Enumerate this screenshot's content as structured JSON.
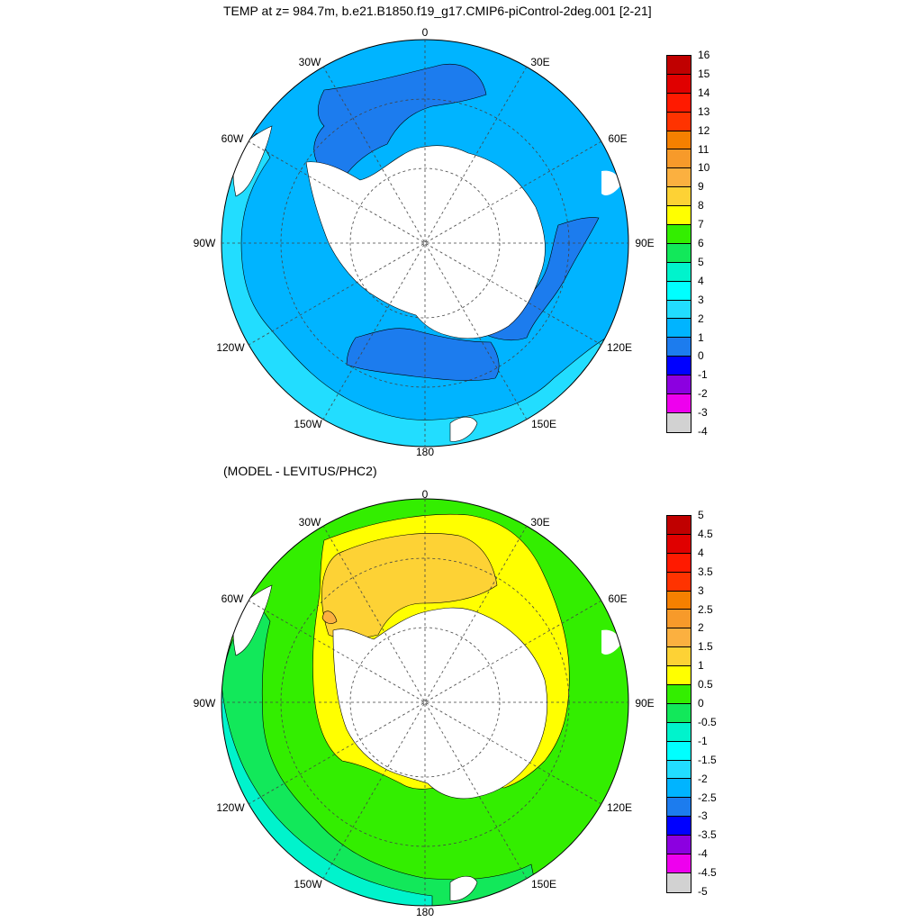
{
  "titles": {
    "top": "TEMP at z= 984.7m, b.e21.B1850.f19_g17.CMIP6-piControl-2deg.001 [2-21]",
    "bottom": "(MODEL - LEVITUS/PHC2)"
  },
  "lon_labels": [
    "0",
    "30E",
    "60E",
    "90E",
    "120E",
    "150E",
    "180",
    "150W",
    "120W",
    "90W",
    "60W",
    "30W"
  ],
  "colorbar_top": {
    "labels": [
      "16",
      "15",
      "14",
      "13",
      "12",
      "11",
      "10",
      "9",
      "8",
      "7",
      "6",
      "5",
      "4",
      "3",
      "2",
      "1",
      "0",
      "-1",
      "-2",
      "-3",
      "-4"
    ],
    "colors": [
      "#c00000",
      "#e00000",
      "#ff1a00",
      "#ff3300",
      "#f58000",
      "#f79a2a",
      "#fbb040",
      "#fdd235",
      "#ffff00",
      "#33ee00",
      "#12e85a",
      "#00f3cc",
      "#00ffff",
      "#22ddff",
      "#00b4ff",
      "#1c7cee",
      "#0000ff",
      "#8c00e0",
      "#ee00ee",
      "#d2d2d2",
      "#707070"
    ]
  },
  "colorbar_bottom": {
    "labels": [
      "5",
      "4.5",
      "4",
      "3.5",
      "3",
      "2.5",
      "2",
      "1.5",
      "1",
      "0.5",
      "0",
      "-0.5",
      "-1",
      "-1.5",
      "-2",
      "-2.5",
      "-3",
      "-3.5",
      "-4",
      "-4.5",
      "-5"
    ],
    "colors": [
      "#c00000",
      "#e00000",
      "#ff1a00",
      "#ff3300",
      "#f58000",
      "#f79a2a",
      "#fbb040",
      "#fdd235",
      "#ffff00",
      "#33ee00",
      "#12e85a",
      "#00f3cc",
      "#00ffff",
      "#22ddff",
      "#00b4ff",
      "#1c7cee",
      "#0000ff",
      "#8c00e0",
      "#ee00ee",
      "#d2d2d2",
      "#707070"
    ]
  },
  "map_colors": {
    "ocean_3_4": "#00b4ff",
    "ocean_2_3": "#1c7cee",
    "ocean_4_5": "#22ddff",
    "diff_0_05": "#33ee00",
    "diff_05_1": "#ffff00",
    "diff_1_15": "#fdd235",
    "diff_m05_0": "#12e85a",
    "diff_m1_m05": "#00f3cc",
    "diff_15_2": "#fbb040",
    "land": "#ffffff"
  }
}
